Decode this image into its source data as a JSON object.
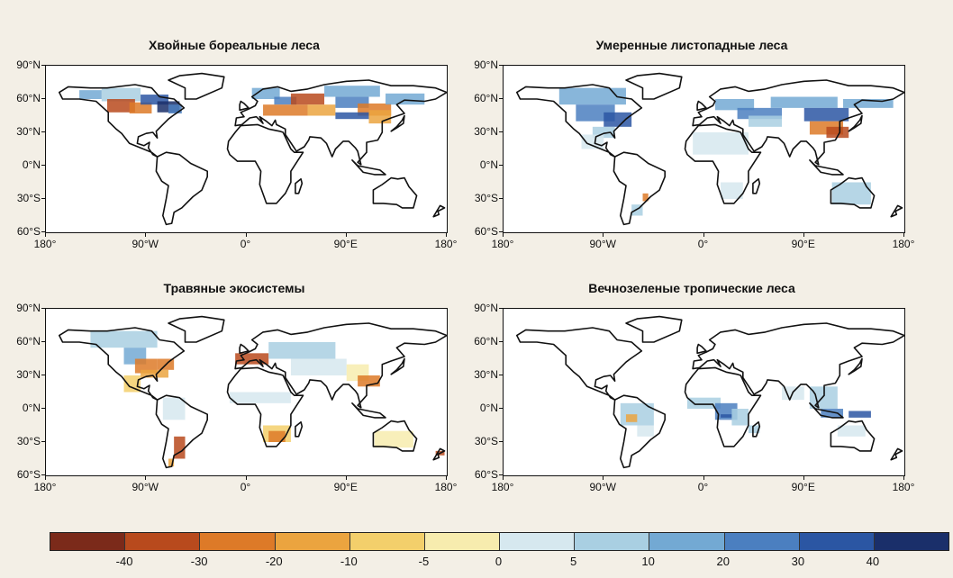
{
  "panels": [
    {
      "title": "Хвойные бореальные леса"
    },
    {
      "title": "Умеренные листопадные леса"
    },
    {
      "title": "Травяные экосистемы"
    },
    {
      "title": "Вечнозеленые тропические леса"
    }
  ],
  "axes": {
    "lat_labels": [
      "90°N",
      "60°N",
      "30°N",
      "0°N",
      "30°S",
      "60°S"
    ],
    "lon_labels": [
      "180°",
      "90°W",
      "0°",
      "90°E",
      "180°"
    ]
  },
  "colorbar": {
    "colors": [
      "#7b2a1a",
      "#b84a1d",
      "#dd7a28",
      "#eba43f",
      "#f3cf6b",
      "#f7ecae",
      "#d6e8ef",
      "#a9cfe2",
      "#73a9d3",
      "#4b7fc0",
      "#2b56a3",
      "#1a2f6a"
    ],
    "tick_labels": [
      "-40",
      "-30",
      "-20",
      "-10",
      "-5",
      "0",
      "5",
      "10",
      "20",
      "30",
      "40"
    ]
  }
}
